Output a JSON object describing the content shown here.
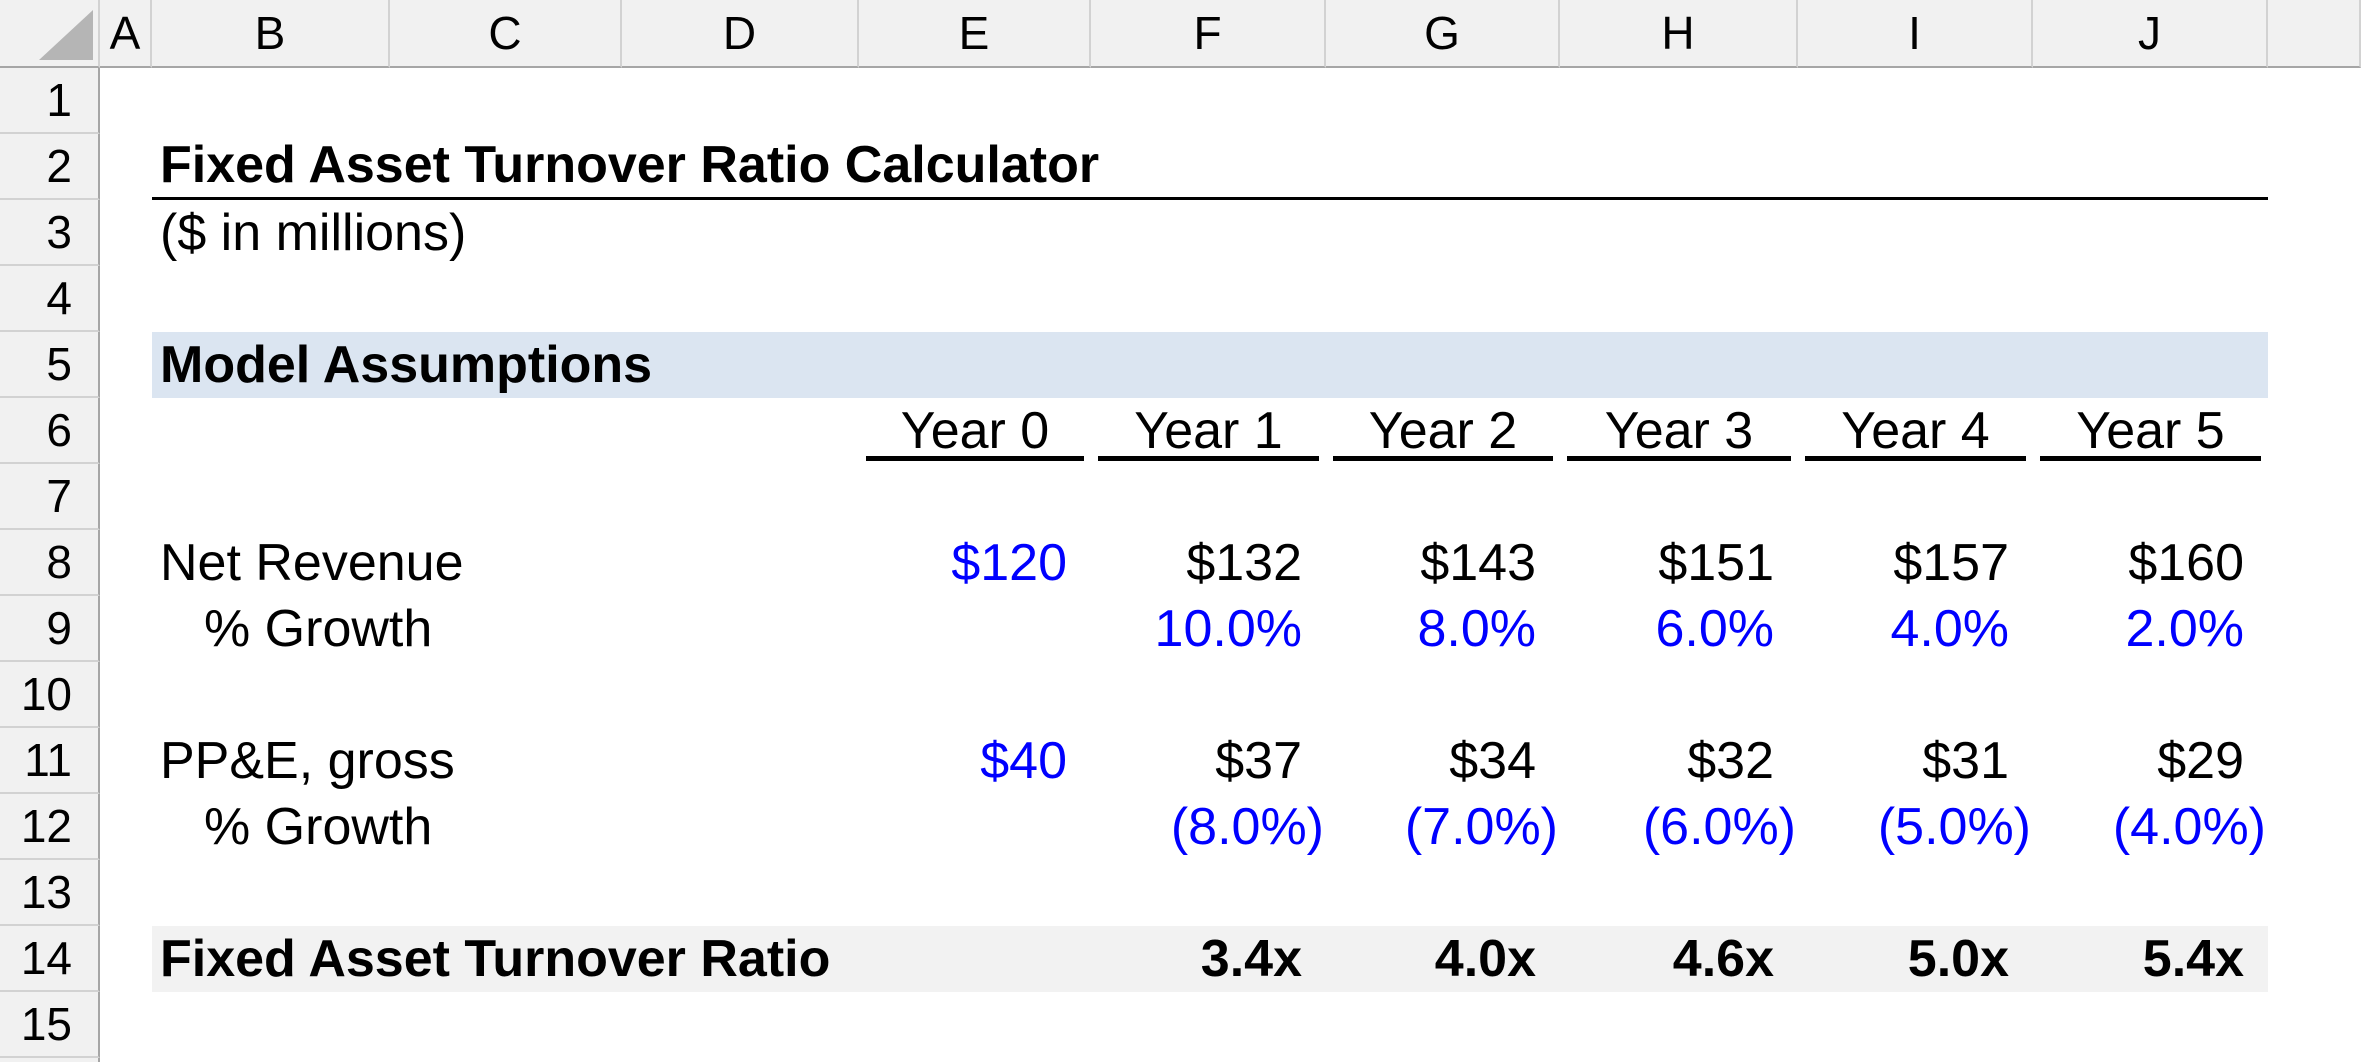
{
  "sheet": {
    "column_headers": [
      "A",
      "B",
      "C",
      "D",
      "E",
      "F",
      "G",
      "H",
      "I",
      "J"
    ],
    "row_headers": [
      "1",
      "2",
      "3",
      "4",
      "5",
      "6",
      "7",
      "8",
      "9",
      "10",
      "11",
      "12",
      "13",
      "14",
      "15"
    ]
  },
  "title": "Fixed Asset Turnover Ratio Calculator",
  "subtitle": "($ in millions)",
  "section_header": "Model Assumptions",
  "year_headers": [
    "Year 0",
    "Year 1",
    "Year 2",
    "Year 3",
    "Year 4",
    "Year 5"
  ],
  "rows": {
    "net_revenue": {
      "label": "Net Revenue",
      "values": [
        "$120",
        "$132",
        "$143",
        "$151",
        "$157",
        "$160"
      ]
    },
    "net_revenue_growth": {
      "label": "% Growth",
      "values": [
        "",
        "10.0%",
        "8.0%",
        "6.0%",
        "4.0%",
        "2.0%"
      ]
    },
    "ppe_gross": {
      "label": "PP&E, gross",
      "values": [
        "$40",
        "$37",
        "$34",
        "$32",
        "$31",
        "$29"
      ]
    },
    "ppe_growth": {
      "label": "% Growth",
      "values": [
        "",
        "(8.0%)",
        "(7.0%)",
        "(6.0%)",
        "(5.0%)",
        "(4.0%)"
      ]
    },
    "fat_ratio": {
      "label": "Fixed Asset Turnover Ratio",
      "values": [
        "",
        "3.4x",
        "4.0x",
        "4.6x",
        "5.0x",
        "5.4x"
      ]
    }
  },
  "colors": {
    "input_font_blue": "#0000ff",
    "section_band_blue": "#dbe5f1",
    "ratio_band_gray": "#f2f2f2",
    "header_bg_gray": "#f1f1f1"
  }
}
